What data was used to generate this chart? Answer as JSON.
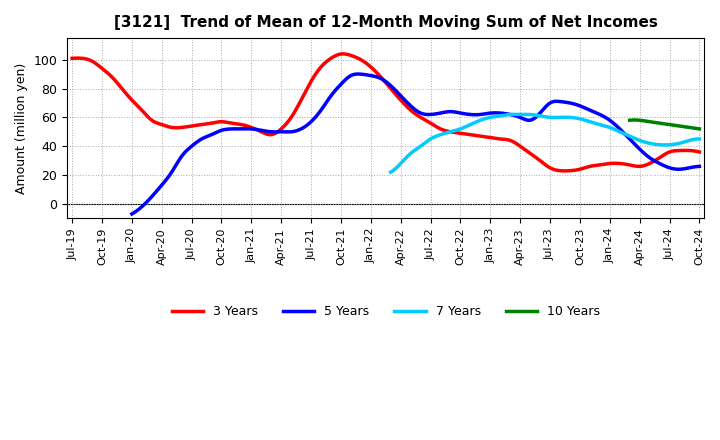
{
  "title": "[3121]  Trend of Mean of 12-Month Moving Sum of Net Incomes",
  "ylabel": "Amount (million yen)",
  "background_color": "#ffffff",
  "grid_color": "#aaaaaa",
  "series": {
    "3 Years": {
      "color": "#ff0000",
      "x": [
        0,
        1,
        2,
        3,
        4,
        5,
        6,
        7,
        8,
        9,
        10,
        11,
        12,
        13,
        14,
        15,
        16,
        17,
        18,
        19,
        20,
        21,
        22,
        23,
        24,
        25,
        26,
        27,
        28,
        29,
        30,
        31,
        32,
        33,
        34,
        35,
        36,
        37,
        38,
        39,
        40,
        41,
        42,
        43,
        44,
        45,
        46,
        47,
        48,
        49,
        50,
        51,
        52,
        53,
        54,
        55,
        56,
        57,
        58,
        59,
        60,
        61,
        62,
        63
      ],
      "y": [
        101,
        101,
        99,
        94,
        88,
        80,
        72,
        65,
        58,
        55,
        53,
        53,
        54,
        55,
        56,
        57,
        56,
        55,
        53,
        50,
        48,
        52,
        60,
        72,
        85,
        95,
        101,
        104,
        103,
        100,
        95,
        88,
        80,
        72,
        65,
        60,
        56,
        52,
        50,
        49,
        48,
        47,
        46,
        45,
        44,
        40,
        35,
        30,
        25,
        23,
        23,
        24,
        26,
        27,
        28,
        28,
        27,
        26,
        28,
        32,
        36,
        37,
        37,
        36
      ]
    },
    "5 Years": {
      "color": "#0000ff",
      "x": [
        6,
        7,
        8,
        9,
        10,
        11,
        12,
        13,
        14,
        15,
        16,
        17,
        18,
        19,
        20,
        21,
        22,
        23,
        24,
        25,
        26,
        27,
        28,
        29,
        30,
        31,
        32,
        33,
        34,
        35,
        36,
        37,
        38,
        39,
        40,
        41,
        42,
        43,
        44,
        45,
        46,
        47,
        48,
        49,
        50,
        51,
        52,
        53,
        54,
        55,
        56,
        57,
        58,
        59,
        60,
        61,
        62,
        63
      ],
      "y": [
        -7,
        -2,
        5,
        13,
        22,
        33,
        40,
        45,
        48,
        51,
        52,
        52,
        52,
        51,
        50,
        50,
        50,
        52,
        57,
        65,
        75,
        83,
        89,
        90,
        89,
        87,
        82,
        75,
        68,
        63,
        62,
        63,
        64,
        63,
        62,
        62,
        63,
        63,
        62,
        60,
        58,
        63,
        70,
        71,
        70,
        68,
        65,
        62,
        58,
        52,
        45,
        38,
        32,
        28,
        25,
        24,
        25,
        26
      ]
    },
    "7 Years": {
      "color": "#00ccff",
      "x": [
        32,
        33,
        34,
        35,
        36,
        37,
        38,
        39,
        40,
        41,
        42,
        43,
        44,
        45,
        46,
        47,
        48,
        49,
        50,
        51,
        52,
        53,
        54,
        55,
        56,
        57,
        58,
        59,
        60,
        61,
        62,
        63
      ],
      "y": [
        22,
        28,
        35,
        40,
        45,
        48,
        50,
        52,
        55,
        58,
        60,
        61,
        62,
        62,
        62,
        61,
        60,
        60,
        60,
        59,
        57,
        55,
        53,
        50,
        47,
        44,
        42,
        41,
        41,
        42,
        44,
        45
      ]
    },
    "10 Years": {
      "color": "#008000",
      "x": [
        56,
        57,
        58,
        59,
        60,
        61,
        62,
        63
      ],
      "y": [
        58,
        58,
        57,
        56,
        55,
        54,
        53,
        52
      ]
    }
  },
  "xtick_labels": [
    "Jul-19",
    "Oct-19",
    "Jan-20",
    "Apr-20",
    "Jul-20",
    "Oct-20",
    "Jan-21",
    "Apr-21",
    "Jul-21",
    "Oct-21",
    "Jan-22",
    "Apr-22",
    "Jul-22",
    "Oct-22",
    "Jan-23",
    "Apr-23",
    "Jul-23",
    "Oct-23",
    "Jan-24",
    "Apr-24",
    "Jul-24",
    "Oct-24"
  ],
  "xtick_positions": [
    0,
    3,
    6,
    9,
    12,
    15,
    18,
    21,
    24,
    27,
    30,
    33,
    36,
    39,
    42,
    45,
    48,
    51,
    54,
    57,
    60,
    63
  ],
  "ylim": [
    -10,
    115
  ],
  "yticks": [
    0,
    20,
    40,
    60,
    80,
    100
  ],
  "linewidth": 2.5
}
